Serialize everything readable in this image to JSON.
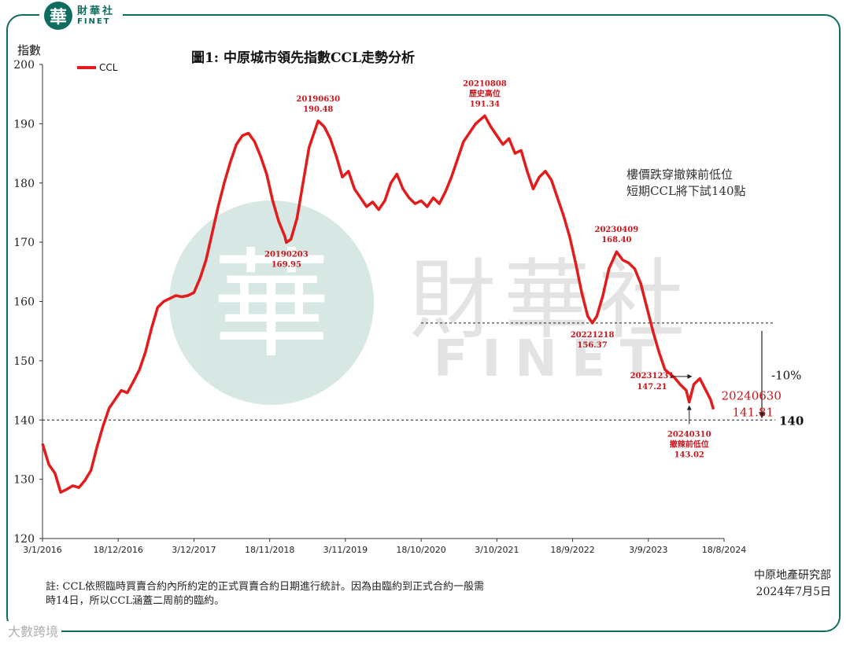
{
  "brand": {
    "logo_char": "華",
    "name_cn": "財華社",
    "name_en": "FINET"
  },
  "watermark_bottom": "大數跨境",
  "watermark_center": {
    "cn": "財華社",
    "en": "FINET",
    "logo_char": "華"
  },
  "chart_data": {
    "type": "line",
    "title": "圖1: 中原城市領先指數CCL走勢分析",
    "ylabel": "指數",
    "ylim": [
      120,
      200
    ],
    "yticks": [
      120,
      130,
      140,
      150,
      160,
      170,
      180,
      190,
      200
    ],
    "xticks": [
      "3/1/2016",
      "18/12/2016",
      "3/12/2017",
      "18/11/2018",
      "3/11/2019",
      "18/10/2020",
      "3/10/2021",
      "18/9/2022",
      "3/9/2023",
      "18/8/2024"
    ],
    "xrange": [
      "2016-01-03",
      "2024-08-18"
    ],
    "legend": {
      "position": "top-left"
    },
    "series": [
      {
        "name": "CCL",
        "color": "#e31b1b",
        "points": [
          [
            "2016-01-03",
            136.0
          ],
          [
            "2016-02-01",
            132.5
          ],
          [
            "2016-03-01",
            131.0
          ],
          [
            "2016-03-27",
            127.8
          ],
          [
            "2016-04-24",
            128.3
          ],
          [
            "2016-05-22",
            128.9
          ],
          [
            "2016-06-19",
            128.6
          ],
          [
            "2016-07-17",
            129.8
          ],
          [
            "2016-08-14",
            131.5
          ],
          [
            "2016-09-11",
            135.5
          ],
          [
            "2016-10-09",
            139.0
          ],
          [
            "2016-11-06",
            142.0
          ],
          [
            "2016-12-04",
            143.5
          ],
          [
            "2017-01-01",
            145.0
          ],
          [
            "2017-01-29",
            144.6
          ],
          [
            "2017-02-26",
            146.5
          ],
          [
            "2017-03-26",
            148.5
          ],
          [
            "2017-04-23",
            151.5
          ],
          [
            "2017-05-21",
            155.5
          ],
          [
            "2017-06-18",
            159.0
          ],
          [
            "2017-07-16",
            160.0
          ],
          [
            "2017-08-13",
            160.5
          ],
          [
            "2017-09-10",
            161.0
          ],
          [
            "2017-10-08",
            160.8
          ],
          [
            "2017-11-05",
            161.0
          ],
          [
            "2017-12-03",
            161.5
          ],
          [
            "2018-01-01",
            164.0
          ],
          [
            "2018-01-28",
            167.0
          ],
          [
            "2018-02-25",
            171.5
          ],
          [
            "2018-03-25",
            176.0
          ],
          [
            "2018-04-22",
            180.0
          ],
          [
            "2018-05-20",
            183.5
          ],
          [
            "2018-06-17",
            186.5
          ],
          [
            "2018-07-15",
            188.0
          ],
          [
            "2018-08-12",
            188.4
          ],
          [
            "2018-09-09",
            187.0
          ],
          [
            "2018-10-07",
            184.5
          ],
          [
            "2018-11-04",
            181.5
          ],
          [
            "2018-12-02",
            177.0
          ],
          [
            "2018-12-30",
            173.5
          ],
          [
            "2019-01-27",
            171.0
          ],
          [
            "2019-02-03",
            169.95
          ],
          [
            "2019-02-24",
            170.5
          ],
          [
            "2019-03-24",
            174.0
          ],
          [
            "2019-04-21",
            180.0
          ],
          [
            "2019-05-19",
            186.0
          ],
          [
            "2019-06-30",
            190.48
          ],
          [
            "2019-07-28",
            189.5
          ],
          [
            "2019-08-25",
            187.5
          ],
          [
            "2019-09-22",
            184.5
          ],
          [
            "2019-10-20",
            181.0
          ],
          [
            "2019-11-17",
            182.0
          ],
          [
            "2019-12-15",
            179.0
          ],
          [
            "2020-01-12",
            177.5
          ],
          [
            "2020-02-09",
            176.0
          ],
          [
            "2020-03-08",
            176.8
          ],
          [
            "2020-04-05",
            175.5
          ],
          [
            "2020-05-03",
            177.0
          ],
          [
            "2020-05-31",
            180.0
          ],
          [
            "2020-06-28",
            181.5
          ],
          [
            "2020-07-26",
            179.0
          ],
          [
            "2020-08-23",
            177.5
          ],
          [
            "2020-09-20",
            176.5
          ],
          [
            "2020-10-18",
            177.0
          ],
          [
            "2020-11-15",
            176.0
          ],
          [
            "2020-12-13",
            177.5
          ],
          [
            "2021-01-10",
            176.5
          ],
          [
            "2021-02-07",
            178.5
          ],
          [
            "2021-03-07",
            181.0
          ],
          [
            "2021-04-04",
            184.0
          ],
          [
            "2021-05-02",
            187.0
          ],
          [
            "2021-05-30",
            188.5
          ],
          [
            "2021-06-27",
            190.0
          ],
          [
            "2021-08-08",
            191.34
          ],
          [
            "2021-09-05",
            189.5
          ],
          [
            "2021-10-03",
            188.0
          ],
          [
            "2021-10-31",
            186.5
          ],
          [
            "2021-11-28",
            187.5
          ],
          [
            "2021-12-26",
            185.0
          ],
          [
            "2022-01-23",
            185.5
          ],
          [
            "2022-02-20",
            182.0
          ],
          [
            "2022-03-20",
            179.0
          ],
          [
            "2022-04-17",
            181.0
          ],
          [
            "2022-05-15",
            182.0
          ],
          [
            "2022-06-12",
            180.5
          ],
          [
            "2022-07-10",
            177.5
          ],
          [
            "2022-08-07",
            174.5
          ],
          [
            "2022-09-04",
            171.0
          ],
          [
            "2022-10-02",
            166.5
          ],
          [
            "2022-10-30",
            161.5
          ],
          [
            "2022-11-27",
            157.5
          ],
          [
            "2022-12-18",
            156.37
          ],
          [
            "2023-01-08",
            157.5
          ],
          [
            "2023-02-05",
            161.0
          ],
          [
            "2023-03-05",
            165.5
          ],
          [
            "2023-04-09",
            168.4
          ],
          [
            "2023-05-07",
            167.0
          ],
          [
            "2023-06-04",
            166.5
          ],
          [
            "2023-07-02",
            165.5
          ],
          [
            "2023-07-30",
            163.0
          ],
          [
            "2023-08-27",
            159.0
          ],
          [
            "2023-09-24",
            155.0
          ],
          [
            "2023-10-22",
            151.5
          ],
          [
            "2023-11-19",
            148.5
          ],
          [
            "2023-12-31",
            147.21
          ],
          [
            "2024-01-28",
            146.0
          ],
          [
            "2024-02-25",
            145.0
          ],
          [
            "2024-03-10",
            143.02
          ],
          [
            "2024-03-31",
            146.0
          ],
          [
            "2024-04-28",
            147.0
          ],
          [
            "2024-05-26",
            145.0
          ],
          [
            "2024-06-16",
            143.5
          ],
          [
            "2024-06-30",
            141.81
          ]
        ]
      }
    ],
    "annotations": [
      {
        "date": "2019-02-03",
        "value": 169.95,
        "label": "20190203",
        "value_text": "169.95",
        "side": "below"
      },
      {
        "date": "2019-06-30",
        "value": 190.48,
        "label": "20190630",
        "value_text": "190.48",
        "side": "above"
      },
      {
        "date": "2021-08-08",
        "value": 191.34,
        "label": "20210808",
        "sublabel": "歷史高位",
        "value_text": "191.34",
        "side": "above"
      },
      {
        "date": "2022-12-18",
        "value": 156.37,
        "label": "20221218",
        "value_text": "156.37",
        "side": "below"
      },
      {
        "date": "2023-04-09",
        "value": 168.4,
        "label": "20230409",
        "value_text": "168.40",
        "side": "above"
      },
      {
        "date": "2023-12-31",
        "value": 147.21,
        "label": "20231231",
        "value_text": "147.21",
        "side": "left"
      },
      {
        "date": "2024-03-10",
        "value": 143.02,
        "label": "20240310",
        "sublabel": "撤辣前低位",
        "value_text": "143.02",
        "side": "below"
      },
      {
        "date": "2024-06-30",
        "value": 141.81,
        "label": "20240630",
        "value_text": "141.81",
        "side": "right"
      }
    ],
    "reference_lines": [
      {
        "value": 156.37,
        "style": "dashed"
      },
      {
        "value": 140,
        "style": "dashed",
        "label": "140"
      }
    ],
    "drop_label": "-10%",
    "callout": [
      "樓價跌穿撤辣前低位",
      "短期CCL將下試140點"
    ]
  },
  "footer": {
    "note_line1": "註: CCL依照臨時買賣合約內所約定的正式買賣合約日期進行統計。因為由臨約到正式合約一般需",
    "note_line2": "時14日，所以CCL涵蓋二周前的臨約。",
    "source_line1": "中原地產研究部",
    "source_line2": "2024年7月5日"
  }
}
